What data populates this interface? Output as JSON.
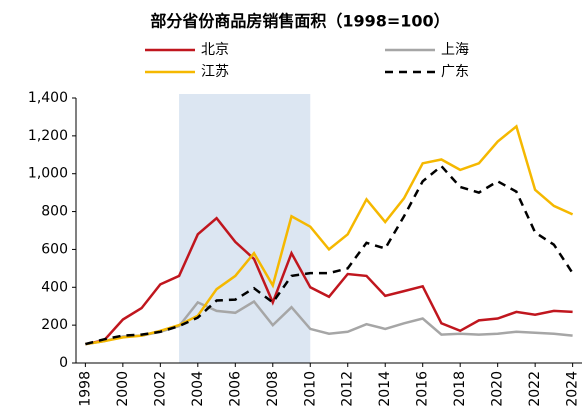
{
  "chart_data": {
    "type": "line",
    "title": "部分省份商品房销售面积（1998=100）",
    "x": [
      1998,
      1999,
      2000,
      2001,
      2002,
      2003,
      2004,
      2005,
      2006,
      2007,
      2008,
      2009,
      2010,
      2011,
      2012,
      2013,
      2014,
      2015,
      2016,
      2017,
      2018,
      2019,
      2020,
      2021,
      2022,
      2023,
      2024
    ],
    "series": [
      {
        "name": "北京",
        "color": "#c0161e",
        "dash": false,
        "values": [
          100,
          120,
          230,
          290,
          415,
          460,
          680,
          765,
          640,
          550,
          320,
          580,
          400,
          350,
          470,
          460,
          355,
          380,
          405,
          210,
          170,
          225,
          235,
          270,
          255,
          275,
          270
        ]
      },
      {
        "name": "上海",
        "color": "#a6a6a6",
        "dash": false,
        "values": [
          100,
          115,
          140,
          145,
          165,
          195,
          320,
          275,
          265,
          325,
          200,
          295,
          180,
          155,
          165,
          205,
          180,
          210,
          235,
          150,
          155,
          150,
          155,
          165,
          160,
          155,
          145
        ]
      },
      {
        "name": "江苏",
        "color": "#f5b800",
        "dash": false,
        "values": [
          100,
          115,
          135,
          145,
          170,
          200,
          250,
          390,
          460,
          580,
          410,
          775,
          720,
          600,
          680,
          865,
          745,
          870,
          1055,
          1075,
          1020,
          1055,
          1170,
          1250,
          915,
          830,
          785
        ]
      },
      {
        "name": "广东",
        "color": "#000000",
        "dash": true,
        "values": [
          100,
          125,
          145,
          150,
          165,
          195,
          240,
          330,
          335,
          395,
          320,
          460,
          475,
          475,
          500,
          635,
          605,
          775,
          960,
          1040,
          930,
          900,
          960,
          905,
          690,
          625,
          475
        ]
      }
    ],
    "highlight": {
      "x": [
        2003,
        2010
      ],
      "color": "#dce6f2"
    },
    "xlim": [
      1997.5,
      2024.5
    ],
    "xticks": [
      1998,
      2000,
      2002,
      2004,
      2006,
      2008,
      2010,
      2012,
      2014,
      2016,
      2018,
      2020,
      2022,
      2024
    ],
    "ylim": [
      0,
      1400
    ],
    "yticks": [
      0,
      200,
      400,
      600,
      800,
      {
        "value": 1000,
        "label": "1,000"
      },
      {
        "value": 1200,
        "label": "1,200"
      },
      {
        "value": 1400,
        "label": "1,400"
      }
    ],
    "grid": false
  }
}
